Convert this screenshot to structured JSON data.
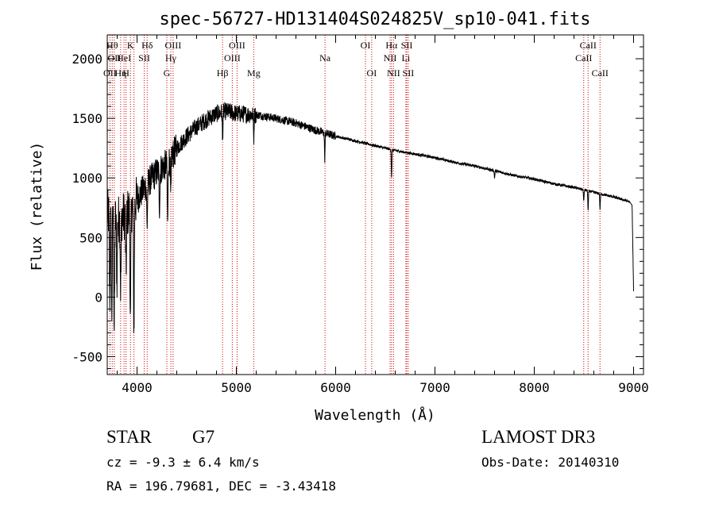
{
  "chart_data": {
    "type": "line",
    "title": "spec-56727-HD131404S024825V_sp10-041.fits",
    "xlabel": "Wavelength (Å)",
    "ylabel": "Flux (relative)",
    "xlim": [
      3700,
      9100
    ],
    "ylim": [
      -650,
      2200
    ],
    "xticks": [
      4000,
      5000,
      6000,
      7000,
      8000,
      9000
    ],
    "yticks": [
      -500,
      0,
      500,
      1000,
      1500,
      2000
    ],
    "xtick_labels": [
      "4000",
      "5000",
      "6000",
      "7000",
      "8000",
      "9000"
    ],
    "ytick_labels": [
      "-500",
      "0",
      "500",
      "1000",
      "1500",
      "2000"
    ],
    "grid": false,
    "series": [
      {
        "name": "spectrum",
        "continuum": {
          "x": [
            3700,
            3800,
            3900,
            4000,
            4100,
            4200,
            4300,
            4400,
            4500,
            4600,
            4700,
            4800,
            4900,
            5000,
            5200,
            5400,
            5600,
            5800,
            6000,
            6200,
            6400,
            6600,
            6800,
            7000,
            7200,
            7400,
            7600,
            7800,
            8000,
            8200,
            8400,
            8600,
            8800,
            8960,
            8985,
            9000
          ],
          "y": [
            700,
            650,
            700,
            820,
            950,
            1050,
            1120,
            1250,
            1350,
            1430,
            1490,
            1540,
            1560,
            1540,
            1530,
            1500,
            1460,
            1400,
            1350,
            1310,
            1270,
            1230,
            1200,
            1170,
            1130,
            1100,
            1060,
            1020,
            990,
            950,
            920,
            880,
            840,
            800,
            770,
            50
          ]
        },
        "absorption_lines": [
          {
            "x": 3725,
            "depth": 700
          },
          {
            "x": 3745,
            "depth": 850
          },
          {
            "x": 3770,
            "depth": 950
          },
          {
            "x": 3797,
            "depth": 500
          },
          {
            "x": 3835,
            "depth": 600
          },
          {
            "x": 3889,
            "depth": 500
          },
          {
            "x": 3933,
            "depth": 1000
          },
          {
            "x": 3968,
            "depth": 1050
          },
          {
            "x": 4101,
            "depth": 350
          },
          {
            "x": 4226,
            "depth": 300
          },
          {
            "x": 4308,
            "depth": 500
          },
          {
            "x": 4340,
            "depth": 350
          },
          {
            "x": 4861,
            "depth": 250
          },
          {
            "x": 5175,
            "depth": 200
          },
          {
            "x": 5890,
            "depth": 220
          },
          {
            "x": 6563,
            "depth": 240
          },
          {
            "x": 7600,
            "depth": 60
          },
          {
            "x": 8498,
            "depth": 100
          },
          {
            "x": 8542,
            "depth": 170
          },
          {
            "x": 8662,
            "depth": 130
          }
        ]
      }
    ],
    "line_markers": [
      {
        "x": 3727,
        "label": "OII",
        "row": 3
      },
      {
        "x": 3750,
        "label": "Hθ",
        "row": 1
      },
      {
        "x": 3771,
        "label": "OII",
        "row": 2
      },
      {
        "x": 3835,
        "label": "Hη",
        "row": 3
      },
      {
        "x": 3869,
        "label": "HeI",
        "row": 2
      },
      {
        "x": 3889,
        "label": "H",
        "row": 3
      },
      {
        "x": 3934,
        "label": "K",
        "row": 1
      },
      {
        "x": 3969,
        "label": "",
        "row": 0
      },
      {
        "x": 4072,
        "label": "SII",
        "row": 2
      },
      {
        "x": 4102,
        "label": "Hδ",
        "row": 1
      },
      {
        "x": 4300,
        "label": "G",
        "row": 3
      },
      {
        "x": 4340,
        "label": "Hγ",
        "row": 2
      },
      {
        "x": 4363,
        "label": "OIII",
        "row": 1
      },
      {
        "x": 4861,
        "label": "Hβ",
        "row": 3
      },
      {
        "x": 4959,
        "label": "OIII",
        "row": 2
      },
      {
        "x": 5007,
        "label": "OIII",
        "row": 1
      },
      {
        "x": 5175,
        "label": "Mg",
        "row": 3
      },
      {
        "x": 5893,
        "label": "Na",
        "row": 2
      },
      {
        "x": 6300,
        "label": "OI",
        "row": 1
      },
      {
        "x": 6363,
        "label": "OI",
        "row": 3
      },
      {
        "x": 6548,
        "label": "NII",
        "row": 2
      },
      {
        "x": 6563,
        "label": "Hα",
        "row": 1
      },
      {
        "x": 6583,
        "label": "NII",
        "row": 3
      },
      {
        "x": 6707,
        "label": "Li",
        "row": 2
      },
      {
        "x": 6716,
        "label": "SII",
        "row": 1
      },
      {
        "x": 6731,
        "label": "SII",
        "row": 3
      },
      {
        "x": 8498,
        "label": "CaII",
        "row": 2
      },
      {
        "x": 8542,
        "label": "CaII",
        "row": 1
      },
      {
        "x": 8662,
        "label": "CaII",
        "row": 3
      }
    ],
    "colors": {
      "spectrum": "#000000",
      "marker": "#cc0000",
      "axes": "#000000"
    }
  },
  "info": {
    "object_class": "STAR",
    "subclass": "G7",
    "survey": "LAMOST DR3",
    "redshift": "cz = -9.3 ± 6.4 km/s",
    "obs_date": "Obs-Date: 20140310",
    "coords": "RA = 196.79681, DEC =  -3.43418"
  }
}
